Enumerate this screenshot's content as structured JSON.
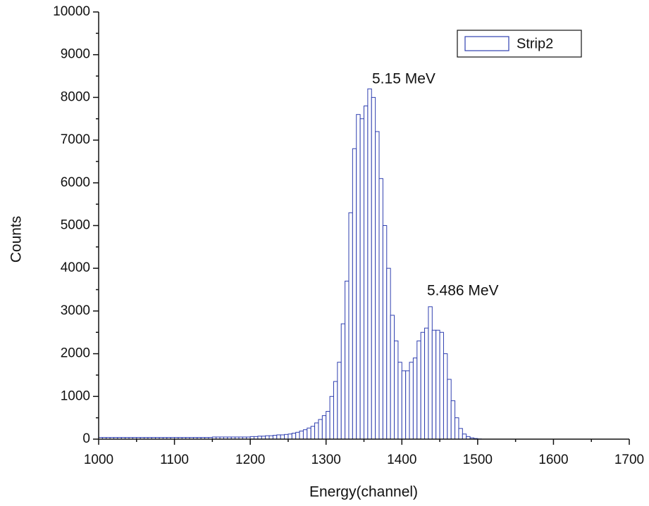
{
  "chart_data": {
    "type": "histogram",
    "x_label": "Energy(channel)",
    "y_label": "Counts",
    "series": [
      {
        "name": "Strip2",
        "color": "#2f3fb0"
      }
    ],
    "bins": [
      1000,
      1005,
      1010,
      1015,
      1020,
      1025,
      1030,
      1035,
      1040,
      1045,
      1050,
      1055,
      1060,
      1065,
      1070,
      1075,
      1080,
      1085,
      1090,
      1095,
      1100,
      1105,
      1110,
      1115,
      1120,
      1125,
      1130,
      1135,
      1140,
      1145,
      1150,
      1155,
      1160,
      1165,
      1170,
      1175,
      1180,
      1185,
      1190,
      1195,
      1200,
      1205,
      1210,
      1215,
      1220,
      1225,
      1230,
      1235,
      1240,
      1245,
      1250,
      1255,
      1260,
      1265,
      1270,
      1275,
      1280,
      1285,
      1290,
      1295,
      1300,
      1305,
      1310,
      1315,
      1320,
      1325,
      1330,
      1335,
      1340,
      1345,
      1350,
      1355,
      1360,
      1365,
      1370,
      1375,
      1380,
      1385,
      1390,
      1395,
      1400,
      1405,
      1410,
      1415,
      1420,
      1425,
      1430,
      1435,
      1440,
      1445,
      1450,
      1455,
      1460,
      1465,
      1470,
      1475,
      1480,
      1485,
      1490,
      1495,
      1500,
      1505,
      1510,
      1515
    ],
    "counts": [
      40,
      40,
      40,
      40,
      40,
      40,
      40,
      40,
      40,
      40,
      40,
      40,
      40,
      40,
      40,
      40,
      40,
      40,
      40,
      40,
      40,
      40,
      40,
      40,
      40,
      40,
      40,
      40,
      40,
      40,
      50,
      50,
      50,
      50,
      50,
      50,
      50,
      50,
      50,
      50,
      60,
      60,
      70,
      70,
      80,
      80,
      90,
      100,
      100,
      110,
      120,
      140,
      160,
      190,
      220,
      260,
      300,
      380,
      460,
      550,
      650,
      1000,
      1350,
      1800,
      2700,
      3700,
      5300,
      6800,
      7600,
      7500,
      7800,
      8200,
      8000,
      7200,
      6100,
      5000,
      4000,
      2900,
      2300,
      1800,
      1600,
      1600,
      1800,
      1900,
      2300,
      2500,
      2600,
      3100,
      2550,
      2550,
      2500,
      2000,
      1400,
      900,
      500,
      250,
      120,
      60,
      30,
      15,
      5,
      0,
      0
    ],
    "annotations": [
      "5.15 MeV",
      "5.486 MeV"
    ],
    "xlim": [
      1000,
      1700
    ],
    "xticks": [
      1000,
      1100,
      1200,
      1300,
      1400,
      1500,
      1600,
      1700
    ],
    "ylim": [
      0,
      10000
    ],
    "yticks": [
      0,
      1000,
      2000,
      3000,
      4000,
      5000,
      6000,
      7000,
      8000,
      9000,
      10000
    ],
    "legend": "upper right"
  }
}
